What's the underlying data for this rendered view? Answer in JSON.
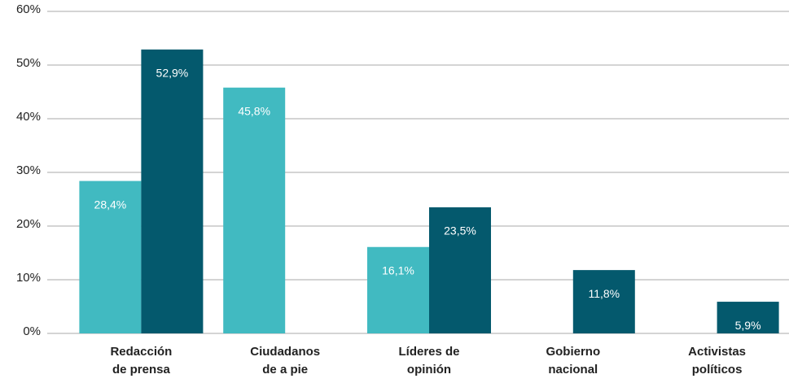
{
  "chart_data": {
    "type": "bar",
    "categories": [
      "Redacción\nde prensa",
      "Ciudadanos\nde a pie",
      "Líderes de\nopinión",
      "Gobierno\nnacional",
      "Activistas\npolíticos"
    ],
    "series": [
      {
        "color": "#41bac1",
        "values": [
          28.4,
          45.8,
          16.1,
          null,
          null
        ],
        "value_labels": [
          "28,4%",
          "45,8%",
          "16,1%",
          null,
          null
        ]
      },
      {
        "color": "#04596d",
        "values": [
          52.9,
          null,
          23.5,
          11.8,
          5.9
        ],
        "value_labels": [
          "52,9%",
          null,
          "23,5%",
          "11,8%",
          "5,9%"
        ]
      }
    ],
    "ylim": [
      0,
      60
    ],
    "yticks": [
      {
        "value": 0,
        "label": "0%"
      },
      {
        "value": 10,
        "label": "10%"
      },
      {
        "value": 20,
        "label": "20%"
      },
      {
        "value": 30,
        "label": "30%"
      },
      {
        "value": 40,
        "label": "40%"
      },
      {
        "value": 50,
        "label": "50%"
      },
      {
        "value": 60,
        "label": "60%"
      }
    ],
    "grid": true
  }
}
